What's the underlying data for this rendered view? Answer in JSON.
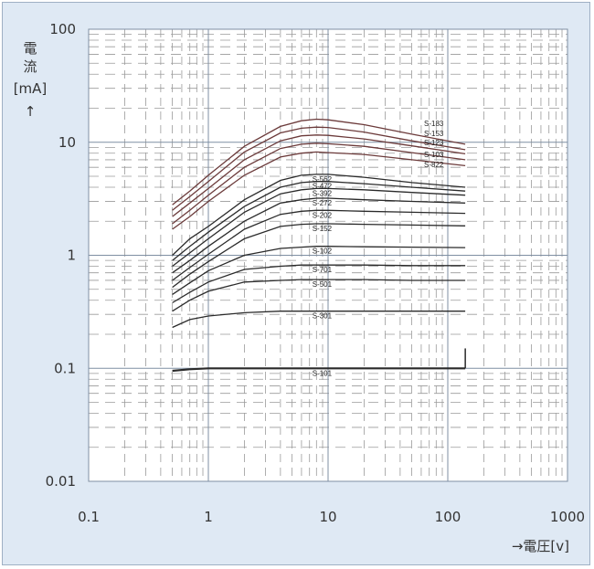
{
  "chart_data": {
    "type": "line",
    "title": "",
    "xlabel": "→電圧[v]",
    "ylabel": [
      "電",
      "流",
      "[mA]",
      "↑"
    ],
    "xscale": "log",
    "yscale": "log",
    "xlim": [
      0.1,
      1000
    ],
    "ylim": [
      0.01,
      100
    ],
    "xticks": [
      "0.1",
      "1",
      "10",
      "100",
      "1000"
    ],
    "yticks": [
      "100",
      "10",
      "1",
      "0.1",
      "0.01"
    ],
    "grid": true,
    "colors": {
      "background": "#dfe9f4",
      "plot": "#ffffff",
      "line": "#2a2a2a",
      "line_red": "#6b3a3a"
    },
    "series": [
      {
        "name": "S-183",
        "x": [
          0.5,
          0.7,
          1,
          2,
          4,
          6,
          8,
          10,
          20,
          50,
          140
        ],
        "y": [
          2.8,
          3.7,
          5.1,
          9.2,
          13.8,
          15.5,
          16,
          15.8,
          14.3,
          11.8,
          9.6
        ]
      },
      {
        "name": "S-153",
        "x": [
          0.5,
          0.7,
          1,
          2,
          4,
          6,
          8,
          10,
          20,
          50,
          140
        ],
        "y": [
          2.5,
          3.3,
          4.5,
          8.2,
          12.1,
          13.3,
          13.6,
          13.5,
          12.3,
          10.3,
          8.6
        ]
      },
      {
        "name": "S-123",
        "x": [
          0.5,
          0.7,
          1,
          2,
          4,
          6,
          8,
          10,
          20,
          50,
          140
        ],
        "y": [
          2.2,
          2.9,
          3.9,
          7,
          10.3,
          11.4,
          11.6,
          11.5,
          10.7,
          9.3,
          7.9
        ]
      },
      {
        "name": "S-103",
        "x": [
          0.5,
          0.7,
          1,
          2,
          4,
          6,
          8,
          10,
          20,
          50,
          140
        ],
        "y": [
          1.9,
          2.5,
          3.4,
          6,
          8.8,
          9.6,
          9.8,
          9.7,
          9.2,
          8.1,
          7
        ]
      },
      {
        "name": "S-822",
        "x": [
          0.5,
          0.7,
          1,
          2,
          4,
          6,
          8,
          10,
          20,
          50,
          140
        ],
        "y": [
          1.7,
          2.2,
          3,
          5.1,
          7.4,
          8,
          8.2,
          8.1,
          7.8,
          7,
          6.2
        ]
      },
      {
        "name": "S-562",
        "x": [
          0.5,
          0.7,
          1,
          2,
          4,
          6,
          8,
          10,
          20,
          50,
          140
        ],
        "y": [
          1,
          1.4,
          1.8,
          3.1,
          4.6,
          5.1,
          5.2,
          5.2,
          4.9,
          4.4,
          4
        ]
      },
      {
        "name": "S-472",
        "x": [
          0.5,
          0.7,
          1,
          2,
          4,
          6,
          8,
          10,
          20,
          50,
          140
        ],
        "y": [
          0.9,
          1.2,
          1.6,
          2.7,
          4,
          4.4,
          4.5,
          4.5,
          4.3,
          4,
          3.7
        ]
      },
      {
        "name": "S-392",
        "x": [
          0.5,
          0.7,
          1,
          2,
          4,
          6,
          8,
          10,
          20,
          50,
          140
        ],
        "y": [
          0.8,
          1.05,
          1.4,
          2.4,
          3.5,
          3.8,
          3.9,
          3.9,
          3.8,
          3.6,
          3.4
        ]
      },
      {
        "name": "S-272",
        "x": [
          0.5,
          0.7,
          1,
          2,
          4,
          6,
          8,
          10,
          20,
          50,
          140
        ],
        "y": [
          0.7,
          0.9,
          1.2,
          2,
          2.9,
          3.1,
          3.2,
          3.2,
          3.1,
          3,
          2.9
        ]
      },
      {
        "name": "S-202",
        "x": [
          0.5,
          0.7,
          1,
          2,
          4,
          6,
          8,
          10,
          20,
          50,
          140
        ],
        "y": [
          0.6,
          0.78,
          1.02,
          1.7,
          2.3,
          2.45,
          2.5,
          2.5,
          2.45,
          2.4,
          2.35
        ]
      },
      {
        "name": "S-152",
        "x": [
          0.5,
          0.7,
          1,
          2,
          4,
          6,
          8,
          10,
          20,
          50,
          140
        ],
        "y": [
          0.52,
          0.68,
          0.88,
          1.4,
          1.8,
          1.88,
          1.9,
          1.9,
          1.88,
          1.85,
          1.82
        ]
      },
      {
        "name": "S-102",
        "x": [
          0.5,
          0.7,
          1,
          2,
          4,
          6,
          8,
          10,
          20,
          50,
          140
        ],
        "y": [
          0.45,
          0.57,
          0.73,
          1.0,
          1.15,
          1.18,
          1.2,
          1.2,
          1.19,
          1.18,
          1.17
        ]
      },
      {
        "name": "S-701",
        "x": [
          0.5,
          0.7,
          1,
          2,
          4,
          6,
          8,
          10,
          20,
          50,
          140
        ],
        "y": [
          0.38,
          0.47,
          0.58,
          0.75,
          0.8,
          0.82,
          0.82,
          0.82,
          0.82,
          0.81,
          0.81
        ]
      },
      {
        "name": "S-501",
        "x": [
          0.5,
          0.7,
          1,
          2,
          4,
          6,
          8,
          10,
          20,
          50,
          140
        ],
        "y": [
          0.32,
          0.4,
          0.48,
          0.58,
          0.6,
          0.61,
          0.61,
          0.61,
          0.61,
          0.6,
          0.6
        ]
      },
      {
        "name": "S-301",
        "x": [
          0.5,
          0.7,
          1,
          2,
          4,
          6,
          8,
          10,
          20,
          50,
          140
        ],
        "y": [
          0.23,
          0.27,
          0.29,
          0.31,
          0.32,
          0.32,
          0.32,
          0.32,
          0.32,
          0.32,
          0.32
        ]
      },
      {
        "name": "S-101",
        "x": [
          0.5,
          0.7,
          1,
          2,
          4,
          6,
          8,
          10,
          20,
          50,
          140
        ],
        "y": [
          0.095,
          0.098,
          0.1,
          0.1,
          0.1,
          0.1,
          0.1,
          0.1,
          0.1,
          0.1,
          0.1
        ]
      }
    ],
    "annotations": [
      "S-183",
      "S-153",
      "S-123",
      "S-103",
      "S-822",
      "S-562",
      "S-472",
      "S-392",
      "S-272",
      "S-202",
      "S-152",
      "S-102",
      "S-701",
      "S-501",
      "S-301",
      "S-101"
    ]
  }
}
